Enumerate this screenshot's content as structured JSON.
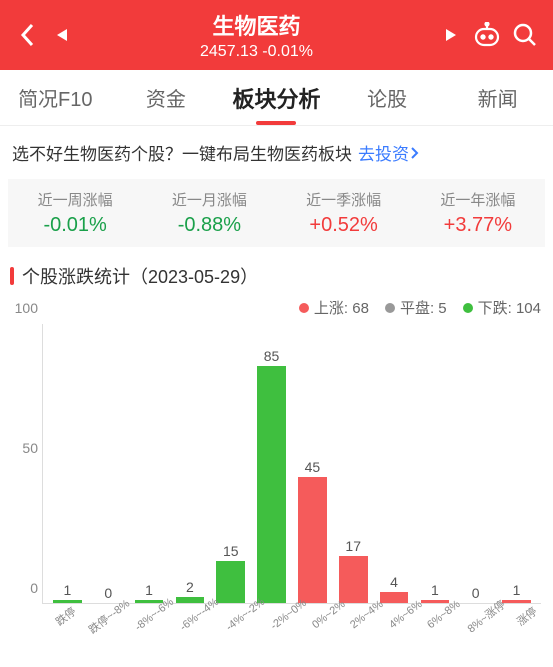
{
  "header": {
    "title": "生物医药",
    "price": "2457.13",
    "change": "-0.01%"
  },
  "tabs": [
    {
      "label": "简况F10",
      "active": false
    },
    {
      "label": "资金",
      "active": false
    },
    {
      "label": "板块分析",
      "active": true
    },
    {
      "label": "论股",
      "active": false
    },
    {
      "label": "新闻",
      "active": false
    }
  ],
  "banner": {
    "text": "选不好生物医药个股？一键布局生物医药板块",
    "link": "去投资"
  },
  "stats": [
    {
      "label": "近一周涨幅",
      "value": "-0.01%",
      "cls": "neg"
    },
    {
      "label": "近一月涨幅",
      "value": "-0.88%",
      "cls": "neg"
    },
    {
      "label": "近一季涨幅",
      "value": "+0.52%",
      "cls": "pos"
    },
    {
      "label": "近一年涨幅",
      "value": "+3.77%",
      "cls": "pos"
    }
  ],
  "section": {
    "title": "个股涨跌统计（2023-05-29）"
  },
  "chart": {
    "type": "bar",
    "yticks": [
      0,
      50,
      100
    ],
    "ymax": 100,
    "legend": [
      {
        "label": "上涨:",
        "value": "68",
        "color": "#f55b5b"
      },
      {
        "label": "平盘:",
        "value": "5",
        "color": "#999999"
      },
      {
        "label": "下跌:",
        "value": "104",
        "color": "#3fbf3f"
      }
    ],
    "bars": [
      {
        "x": "跌停",
        "v": 1,
        "color": "#3fbf3f"
      },
      {
        "x": "跌停~-8%",
        "v": 0,
        "color": "#3fbf3f"
      },
      {
        "x": "-8%~-6%",
        "v": 1,
        "color": "#3fbf3f"
      },
      {
        "x": "-6%~-4%",
        "v": 2,
        "color": "#3fbf3f"
      },
      {
        "x": "-4%~-2%",
        "v": 15,
        "color": "#3fbf3f"
      },
      {
        "x": "-2%~0%",
        "v": 85,
        "color": "#3fbf3f"
      },
      {
        "x": "0%~2%",
        "v": 45,
        "color": "#f55b5b"
      },
      {
        "x": "2%~4%",
        "v": 17,
        "color": "#f55b5b"
      },
      {
        "x": "4%~6%",
        "v": 4,
        "color": "#f55b5b"
      },
      {
        "x": "6%~8%",
        "v": 1,
        "color": "#f55b5b"
      },
      {
        "x": "8%~涨停",
        "v": 0,
        "color": "#f55b5b"
      },
      {
        "x": "涨停",
        "v": 1,
        "color": "#f55b5b"
      }
    ]
  }
}
